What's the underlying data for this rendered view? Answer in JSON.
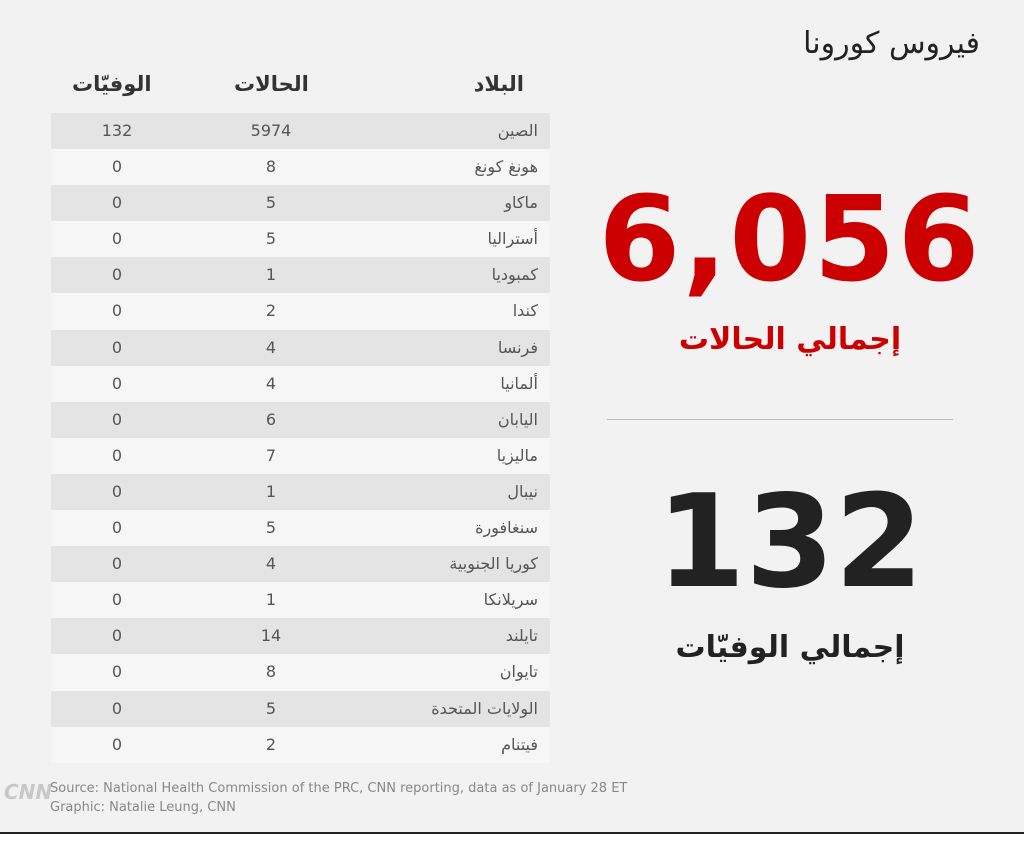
{
  "header": {
    "title": "فيروس كورونا"
  },
  "table": {
    "columns": [
      "البلاد",
      "الحالات",
      "الوفيّات"
    ],
    "rows": [
      [
        "الصين",
        5974,
        132
      ],
      [
        "هونغ كونغ",
        8,
        0
      ],
      [
        "ماكاو",
        5,
        0
      ],
      [
        "أستراليا",
        5,
        0
      ],
      [
        "كمبوديا",
        1,
        0
      ],
      [
        "كندا",
        2,
        0
      ],
      [
        "فرنسا",
        4,
        0
      ],
      [
        "ألمانيا",
        4,
        0
      ],
      [
        "اليابان",
        6,
        0
      ],
      [
        "ماليزيا",
        7,
        0
      ],
      [
        "نيبال",
        1,
        0
      ],
      [
        "سنغافورة",
        5,
        0
      ],
      [
        "كوريا الجنوبية",
        4,
        0
      ],
      [
        "سريلانكا",
        1,
        0
      ],
      [
        "تايلند",
        14,
        0
      ],
      [
        "تايوان",
        8,
        0
      ],
      [
        "الولايات المتحدة",
        5,
        0
      ],
      [
        "فيتنام",
        2,
        0
      ]
    ]
  },
  "totals": {
    "cases": "6,056",
    "cases_label": "إجمالي الحالات",
    "deaths": 132,
    "deaths_label": "إجمالي الوفيّات"
  },
  "footer": {
    "logo": "CNN",
    "source": "Source: National Health Commission of the PRC, CNN reporting, data as of January 28 ET",
    "graphic": "Graphic: Natalie Leung, CNN"
  }
}
